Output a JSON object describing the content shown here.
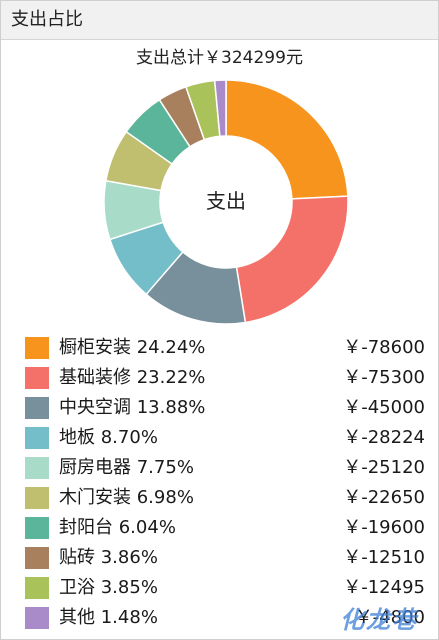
{
  "header": {
    "title": "支出占比"
  },
  "summary": {
    "total_label": "支出总计￥324299元"
  },
  "donut": {
    "center_label": "支出"
  },
  "legend": [
    {
      "name": "橱柜安装",
      "percent": "24.24%",
      "amount": "￥-78600",
      "color": "#f7941d"
    },
    {
      "name": "基础装修",
      "percent": "23.22%",
      "amount": "￥-75300",
      "color": "#f4716a"
    },
    {
      "name": "中央空调",
      "percent": "13.88%",
      "amount": "￥-45000",
      "color": "#78909c"
    },
    {
      "name": "地板",
      "percent": "8.70%",
      "amount": "￥-28224",
      "color": "#74bec9"
    },
    {
      "name": "厨房电器",
      "percent": "7.75%",
      "amount": "￥-25120",
      "color": "#a8dcc9"
    },
    {
      "name": "木门安装",
      "percent": "6.98%",
      "amount": "￥-22650",
      "color": "#c0bf70"
    },
    {
      "name": "封阳台",
      "percent": "6.04%",
      "amount": "￥-19600",
      "color": "#5bb59a"
    },
    {
      "name": "贴砖",
      "percent": "3.86%",
      "amount": "￥-12510",
      "color": "#a9805d"
    },
    {
      "name": "卫浴",
      "percent": "3.85%",
      "amount": "￥-12495",
      "color": "#a9c25a"
    },
    {
      "name": "其他",
      "percent": "1.48%",
      "amount": "￥-4800",
      "color": "#a98bc9"
    }
  ],
  "watermark": {
    "text": "化龙巷"
  },
  "chart_data": {
    "type": "pie",
    "donut": true,
    "title": "支出总计￥324299元",
    "center_text": "支出",
    "legend_position": "bottom",
    "categories": [
      "橱柜安装",
      "基础装修",
      "中央空调",
      "地板",
      "厨房电器",
      "木门安装",
      "封阳台",
      "贴砖",
      "卫浴",
      "其他"
    ],
    "values": [
      24.24,
      23.22,
      13.88,
      8.7,
      7.75,
      6.98,
      6.04,
      3.86,
      3.85,
      1.48
    ],
    "amounts": [
      -78600,
      -75300,
      -45000,
      -28224,
      -25120,
      -22650,
      -19600,
      -12510,
      -12495,
      -4800
    ],
    "colors": [
      "#f7941d",
      "#f4716a",
      "#78909c",
      "#74bec9",
      "#a8dcc9",
      "#c0bf70",
      "#5bb59a",
      "#a9805d",
      "#a9c25a",
      "#a98bc9"
    ]
  }
}
